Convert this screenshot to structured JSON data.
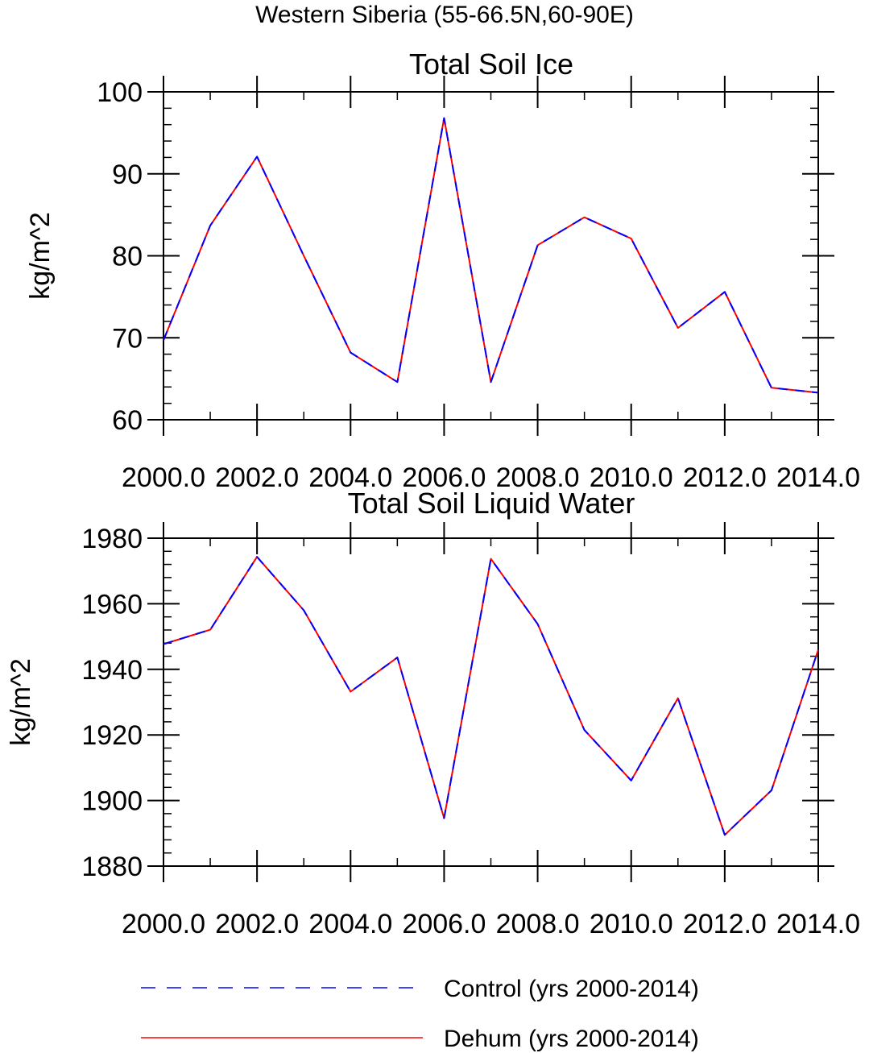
{
  "suptitle": "Western Siberia (55-66.5N,60-90E)",
  "colors": {
    "control": "#0000ff",
    "dehum": "#ff0000",
    "axis": "#000000"
  },
  "legend": [
    {
      "label": "Control (yrs 2000-2014)",
      "color": "#0000ff",
      "style": "dashed"
    },
    {
      "label": "Dehum (yrs 2000-2014)",
      "color": "#ff0000",
      "style": "solid"
    }
  ],
  "chart_data": [
    {
      "type": "line",
      "title": "Total Soil Ice",
      "xlabel": "",
      "ylabel": "kg/m^2",
      "xlim": [
        2000,
        2014
      ],
      "ylim": [
        60,
        100
      ],
      "x_ticks": [
        2000,
        2002,
        2004,
        2006,
        2008,
        2010,
        2012,
        2014
      ],
      "x_tick_labels": [
        "2000.0",
        "2002.0",
        "2004.0",
        "2006.0",
        "2008.0",
        "2010.0",
        "2012.0",
        "2014.0"
      ],
      "y_ticks": [
        60,
        70,
        80,
        90,
        100
      ],
      "y_tick_labels": [
        "60",
        "70",
        "80",
        "90",
        "100"
      ],
      "x": [
        2000,
        2001,
        2002,
        2003,
        2004,
        2005,
        2006,
        2007,
        2008,
        2009,
        2010,
        2011,
        2012,
        2013,
        2014
      ],
      "series": [
        {
          "name": "Control (yrs 2000-2014)",
          "values": [
            69.7,
            83.7,
            92.1,
            80.0,
            68.2,
            64.6,
            96.8,
            64.6,
            81.3,
            84.7,
            82.1,
            71.2,
            75.6,
            63.9,
            63.3
          ]
        },
        {
          "name": "Dehum (yrs 2000-2014)",
          "values": [
            69.7,
            83.7,
            92.1,
            80.0,
            68.2,
            64.6,
            96.8,
            64.6,
            81.3,
            84.7,
            82.1,
            71.2,
            75.6,
            63.9,
            63.3
          ]
        }
      ],
      "grid": false
    },
    {
      "type": "line",
      "title": "Total Soil Liquid Water",
      "xlabel": "",
      "ylabel": "kg/m^2",
      "xlim": [
        2000,
        2014
      ],
      "ylim": [
        1880,
        1980
      ],
      "x_ticks": [
        2000,
        2002,
        2004,
        2006,
        2008,
        2010,
        2012,
        2014
      ],
      "x_tick_labels": [
        "2000.0",
        "2002.0",
        "2004.0",
        "2006.0",
        "2008.0",
        "2010.0",
        "2012.0",
        "2014.0"
      ],
      "y_ticks": [
        1880,
        1900,
        1920,
        1940,
        1960,
        1980
      ],
      "y_tick_labels": [
        "1880",
        "1900",
        "1920",
        "1940",
        "1960",
        "1980"
      ],
      "x": [
        2000,
        2001,
        2002,
        2003,
        2004,
        2005,
        2006,
        2007,
        2008,
        2009,
        2010,
        2011,
        2012,
        2013,
        2014
      ],
      "series": [
        {
          "name": "Control (yrs 2000-2014)",
          "values": [
            1947.7,
            1952.1,
            1974.3,
            1958.0,
            1933.2,
            1943.6,
            1894.6,
            1973.7,
            1953.8,
            1921.5,
            1906.1,
            1931.2,
            1889.5,
            1903.1,
            1946.0
          ]
        },
        {
          "name": "Dehum (yrs 2000-2014)",
          "values": [
            1947.7,
            1952.1,
            1974.3,
            1958.0,
            1933.2,
            1943.6,
            1894.6,
            1973.7,
            1953.8,
            1921.5,
            1906.1,
            1931.2,
            1889.5,
            1903.1,
            1946.0
          ]
        }
      ],
      "grid": false
    }
  ]
}
